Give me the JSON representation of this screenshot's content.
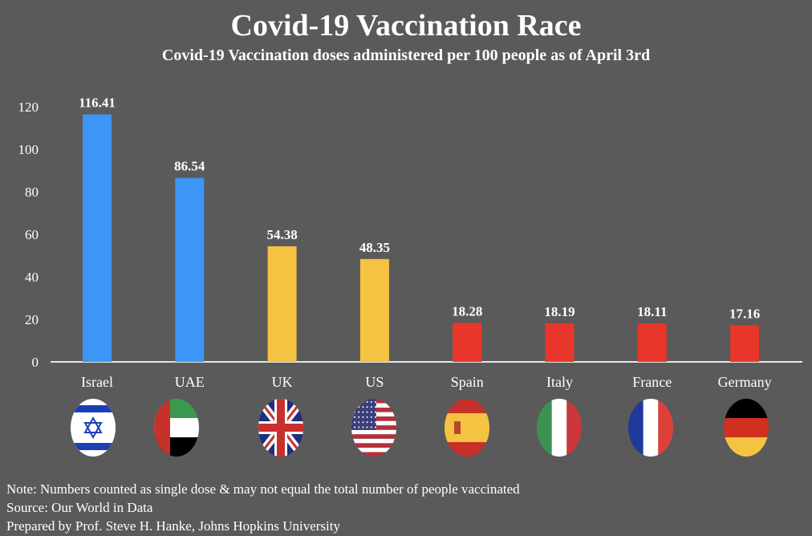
{
  "chart_data": {
    "type": "bar",
    "title": "Covid-19 Vaccination Race",
    "subtitle": "Covid-19 Vaccination doses administered per 100 people as of April 3rd",
    "xlabel": "",
    "ylabel": "",
    "ylim": [
      0,
      120
    ],
    "yticks": [
      0,
      20,
      40,
      60,
      80,
      100,
      120
    ],
    "grid": false,
    "categories": [
      "Israel",
      "UAE",
      "UK",
      "US",
      "Spain",
      "Italy",
      "France",
      "Germany"
    ],
    "values": [
      116.41,
      86.54,
      54.38,
      48.35,
      18.28,
      18.19,
      18.11,
      17.16
    ],
    "data_labels": [
      "116.41",
      "86.54",
      "54.38",
      "48.35",
      "18.28",
      "18.19",
      "18.11",
      "17.16"
    ],
    "bar_colors": [
      "#3d95f5",
      "#3d95f5",
      "#f5c242",
      "#f5c242",
      "#e8372a",
      "#e8372a",
      "#e8372a",
      "#e8372a"
    ],
    "flags": [
      "israel-flag",
      "uae-flag",
      "uk-flag",
      "us-flag",
      "spain-flag",
      "italy-flag",
      "france-flag",
      "germany-flag"
    ]
  },
  "notes": [
    "Note: Numbers counted as single dose & may not equal the total number of people vaccinated",
    "Source: Our World in Data",
    "Prepared by Prof. Steve H. Hanke, Johns Hopkins University"
  ]
}
